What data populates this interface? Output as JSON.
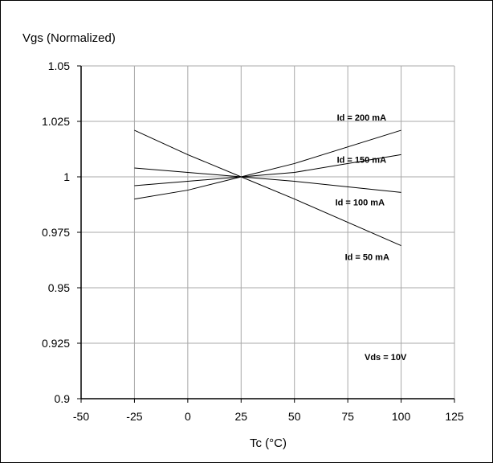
{
  "chart_data": {
    "type": "line",
    "ylabel": "Vgs (Normalized)",
    "xlabel": "Tc (°C)",
    "xlim": [
      -50,
      125
    ],
    "ylim": [
      0.9,
      1.05
    ],
    "xticks": [
      -50,
      -25,
      0,
      25,
      50,
      75,
      100,
      125
    ],
    "yticks": [
      0.9,
      0.925,
      0.95,
      0.975,
      1.0,
      1.025,
      1.05
    ],
    "ytick_labels": [
      "0.9",
      "0.925",
      "0.95",
      "0.975",
      "1",
      "1.025",
      "1.05"
    ],
    "grid": true,
    "x": [
      -25,
      0,
      25,
      50,
      100
    ],
    "series": [
      {
        "name": "Id = 200 mA",
        "values": [
          0.99,
          0.994,
          1.0,
          1.006,
          1.021
        ]
      },
      {
        "name": "Id = 150 mA",
        "values": [
          0.996,
          0.998,
          1.0,
          1.002,
          1.01
        ]
      },
      {
        "name": "Id = 100 mA",
        "values": [
          1.004,
          1.002,
          1.0,
          0.998,
          0.993
        ]
      },
      {
        "name": "Id = 50 mA",
        "values": [
          1.021,
          1.01,
          1.0,
          0.99,
          0.969
        ]
      }
    ],
    "annotation": "Vds = 10V"
  }
}
